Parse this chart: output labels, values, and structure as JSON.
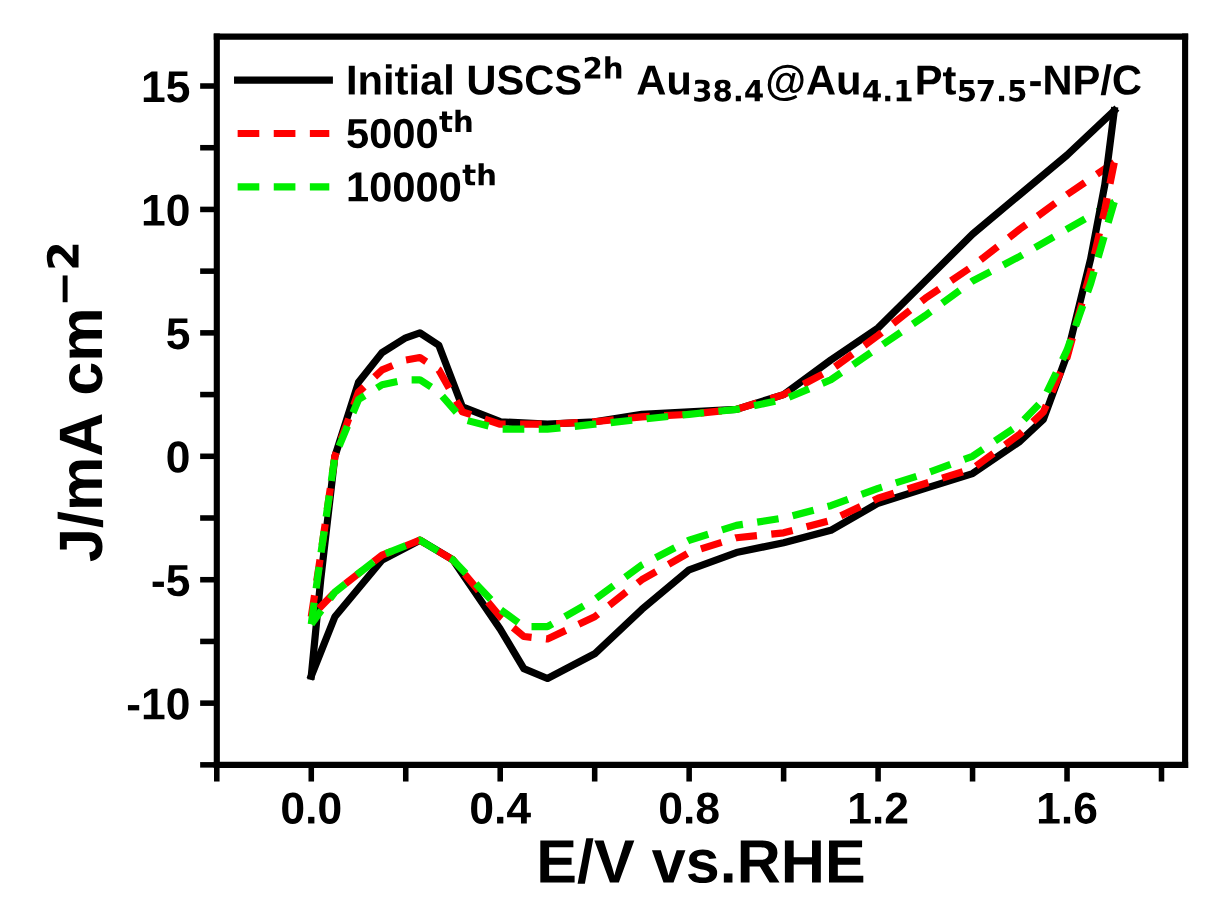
{
  "chart_data": {
    "type": "line",
    "xlabel": "E/V vs.RHE",
    "ylabel": "J/mA cm$^{−2}$",
    "xlim": [
      -0.2,
      1.85
    ],
    "ylim": [
      -12.5,
      17
    ],
    "xticks": [
      {
        "value": -0.2,
        "label": null
      },
      {
        "value": 0.0,
        "label": "0.0"
      },
      {
        "value": 0.2,
        "label": null
      },
      {
        "value": 0.4,
        "label": "0.4"
      },
      {
        "value": 0.6,
        "label": null
      },
      {
        "value": 0.8,
        "label": "0.8"
      },
      {
        "value": 1.0,
        "label": null
      },
      {
        "value": 1.2,
        "label": "1.2"
      },
      {
        "value": 1.4,
        "label": null
      },
      {
        "value": 1.6,
        "label": "1.6"
      },
      {
        "value": 1.8,
        "label": null
      }
    ],
    "yticks": [
      {
        "value": -12.5,
        "label": null
      },
      -10,
      {
        "value": -7.5,
        "label": null
      },
      -5,
      {
        "value": -2.5,
        "label": null
      },
      0,
      {
        "value": 2.5,
        "label": null
      },
      5,
      {
        "value": 7.5,
        "label": null
      },
      10,
      {
        "value": 12.5,
        "label": null
      },
      15
    ],
    "legend": "top left",
    "grid": false,
    "series": [
      {
        "name": "Initial USCS$^{2h}$ Au$_{38.4}$@Au$_{4.1}$Pt$_{57.5}$-NP/C",
        "color": "#000000",
        "line_style": "solid",
        "x": [
          0,
          0.02,
          0.05,
          0.1,
          0.15,
          0.2,
          0.23,
          0.27,
          0.32,
          0.4,
          0.5,
          0.6,
          0.7,
          0.8,
          0.9,
          1.0,
          1.1,
          1.2,
          1.3,
          1.4,
          1.5,
          1.6,
          1.7
        ],
        "values": [
          -8.9,
          -5,
          0,
          3,
          4.2,
          4.8,
          5.0,
          4.5,
          2,
          1.4,
          1.3,
          1.4,
          1.7,
          1.8,
          1.9,
          2.5,
          3.9,
          5.2,
          7.1,
          9.0,
          10.6,
          12.2,
          14
        ]
      },
      {
        "name": "5000$^{th}$",
        "color": "#ff0000",
        "line_style": "dashed",
        "x": [
          0,
          0.02,
          0.05,
          0.1,
          0.15,
          0.2,
          0.23,
          0.27,
          0.32,
          0.4,
          0.5,
          0.6,
          0.7,
          0.8,
          0.9,
          1.0,
          1.1,
          1.2,
          1.3,
          1.4,
          1.5,
          1.6,
          1.7
        ],
        "values": [
          -6.5,
          -4,
          0,
          2.6,
          3.5,
          3.9,
          4.0,
          3.5,
          1.8,
          1.3,
          1.3,
          1.4,
          1.6,
          1.7,
          1.9,
          2.5,
          3.5,
          4.9,
          6.4,
          7.7,
          9.2,
          10.6,
          11.9
        ]
      },
      {
        "name": "10000$^{th}$",
        "color": "#00ee00",
        "line_style": "dashed",
        "x": [
          0,
          0.02,
          0.05,
          0.1,
          0.15,
          0.2,
          0.23,
          0.27,
          0.32,
          0.4,
          0.5,
          0.6,
          0.7,
          0.8,
          0.9,
          1.0,
          1.1,
          1.2,
          1.3,
          1.4,
          1.5,
          1.6,
          1.7
        ],
        "values": [
          -6.8,
          -4,
          0,
          2.3,
          2.9,
          3.1,
          3.1,
          2.6,
          1.5,
          1.1,
          1.1,
          1.3,
          1.5,
          1.7,
          1.9,
          2.3,
          3.1,
          4.4,
          5.7,
          7.1,
          8.1,
          9.2,
          10.3
        ]
      },
      {
        "color": "#000000",
        "line_style": "solid",
        "x": [
          1.7,
          1.68,
          1.65,
          1.6,
          1.55,
          1.5,
          1.4,
          1.3,
          1.2,
          1.1,
          1.0,
          0.9,
          0.8,
          0.7,
          0.6,
          0.5,
          0.45,
          0.4,
          0.3,
          0.23,
          0.15,
          0.05,
          0
        ],
        "values": [
          14,
          11,
          8,
          4.1,
          1.5,
          0.6,
          -0.7,
          -1.3,
          -1.9,
          -3.0,
          -3.5,
          -3.9,
          -4.6,
          -6.2,
          -8,
          -9.0,
          -8.6,
          -7,
          -4.2,
          -3.4,
          -4.2,
          -6.5,
          -8.9
        ]
      },
      {
        "color": "#ff0000",
        "line_style": "dashed",
        "x": [
          1.7,
          1.68,
          1.65,
          1.6,
          1.55,
          1.5,
          1.4,
          1.3,
          1.2,
          1.1,
          1.0,
          0.9,
          0.8,
          0.7,
          0.6,
          0.5,
          0.45,
          0.4,
          0.3,
          0.23,
          0.15,
          0.05,
          0
        ],
        "values": [
          11.9,
          10,
          7.5,
          4.0,
          1.8,
          0.9,
          -0.5,
          -1.1,
          -1.7,
          -2.6,
          -3.1,
          -3.3,
          -3.9,
          -5.0,
          -6.5,
          -7.4,
          -7.3,
          -6.5,
          -4.2,
          -3.4,
          -4.0,
          -5.5,
          -6.5
        ]
      },
      {
        "color": "#00ee00",
        "line_style": "dashed",
        "x": [
          1.7,
          1.68,
          1.65,
          1.6,
          1.55,
          1.5,
          1.4,
          1.3,
          1.2,
          1.1,
          1.0,
          0.9,
          0.8,
          0.7,
          0.6,
          0.5,
          0.45,
          0.4,
          0.3,
          0.23,
          0.15,
          0.05,
          0
        ],
        "values": [
          10.3,
          9,
          7,
          4.3,
          2.3,
          1.3,
          0,
          -0.7,
          -1.3,
          -2.0,
          -2.5,
          -2.8,
          -3.4,
          -4.4,
          -5.8,
          -6.9,
          -6.9,
          -6.2,
          -4.2,
          -3.4,
          -4.0,
          -5.5,
          -6.8
        ]
      }
    ]
  }
}
